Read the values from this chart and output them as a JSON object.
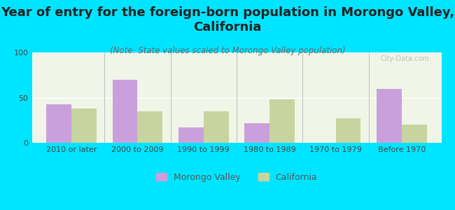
{
  "categories": [
    "2010 or later",
    "2000 to 2009",
    "1990 to 1999",
    "1980 to 1989",
    "1970 to 1979",
    "Before 1970"
  ],
  "morongo_values": [
    43,
    70,
    17,
    22,
    0,
    60
  ],
  "california_values": [
    38,
    35,
    35,
    48,
    27,
    20
  ],
  "morongo_color": "#c9a0dc",
  "california_color": "#c8d4a0",
  "title": "Year of entry for the foreign-born population in Morongo Valley,\nCalifornia",
  "subtitle": "(Note: State values scaled to Morongo Valley population)",
  "legend_labels": [
    "Morongo Valley",
    "California"
  ],
  "ylim": [
    0,
    100
  ],
  "yticks": [
    0,
    50,
    100
  ],
  "background_outer": "#00e5ff",
  "background_inner": "#f0f5e8",
  "title_fontsize": 13,
  "subtitle_fontsize": 8.5,
  "tick_fontsize": 8,
  "legend_fontsize": 9,
  "bar_width": 0.38
}
